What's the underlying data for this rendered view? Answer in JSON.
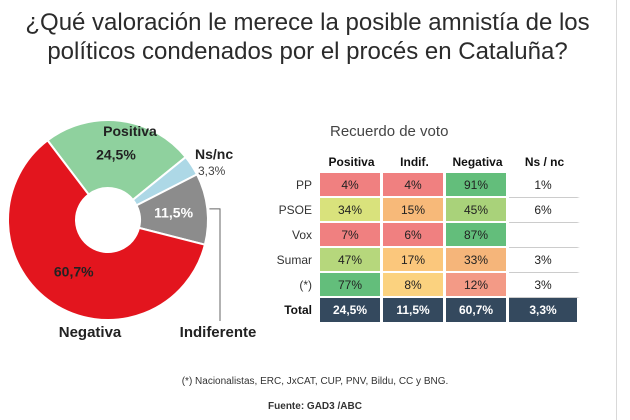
{
  "title": "¿Qué valoración le merece la posible amnistía de los políticos condenados por el procés en Cataluña?",
  "chart_data": [
    {
      "type": "pie",
      "slices": [
        {
          "label": "Positiva",
          "value": 24.5,
          "value_label": "24,5%",
          "color": "#8fd19e"
        },
        {
          "label": "Ns/nc",
          "value": 3.3,
          "value_label": "3,3%",
          "color": "#add8e6"
        },
        {
          "label": "Indiferente",
          "value": 11.5,
          "value_label": "11,5%",
          "color": "#8c8c8c"
        },
        {
          "label": "Negativa",
          "value": 60.7,
          "value_label": "60,7%",
          "color": "#e3151e"
        }
      ]
    },
    {
      "type": "table",
      "title": "Recuerdo de voto",
      "columns": [
        "Positiva",
        "Indif.",
        "Negativa",
        "Ns / nc"
      ],
      "rows": [
        {
          "label": "PP",
          "values": [
            "4%",
            "4%",
            "91%",
            "1%"
          ],
          "colors": [
            "#f08080",
            "#f08080",
            "#63be7b",
            ""
          ]
        },
        {
          "label": "PSOE",
          "values": [
            "34%",
            "15%",
            "45%",
            "6%"
          ],
          "colors": [
            "#d9e27c",
            "#f7b979",
            "#a9d27a",
            ""
          ]
        },
        {
          "label": "Vox",
          "values": [
            "7%",
            "6%",
            "87%",
            ""
          ],
          "colors": [
            "#f08080",
            "#f08080",
            "#63be7b",
            ""
          ]
        },
        {
          "label": "Sumar",
          "values": [
            "47%",
            "17%",
            "33%",
            "3%"
          ],
          "colors": [
            "#b6d77c",
            "#fbc77c",
            "#f5b57a",
            ""
          ]
        },
        {
          "label": "(*)",
          "values": [
            "77%",
            "8%",
            "12%",
            "3%"
          ],
          "colors": [
            "#63be7b",
            "#fbd27f",
            "#f39a86",
            ""
          ]
        }
      ],
      "total": {
        "label": "Total",
        "values": [
          "24,5%",
          "11,5%",
          "60,7%",
          "3,3%"
        ]
      }
    }
  ],
  "footnote": "(*) Nacionalistas, ERC, JxCAT, CUP, PNV, Bildu, CC y BNG.",
  "source": "Fuente: GAD3 /ABC"
}
